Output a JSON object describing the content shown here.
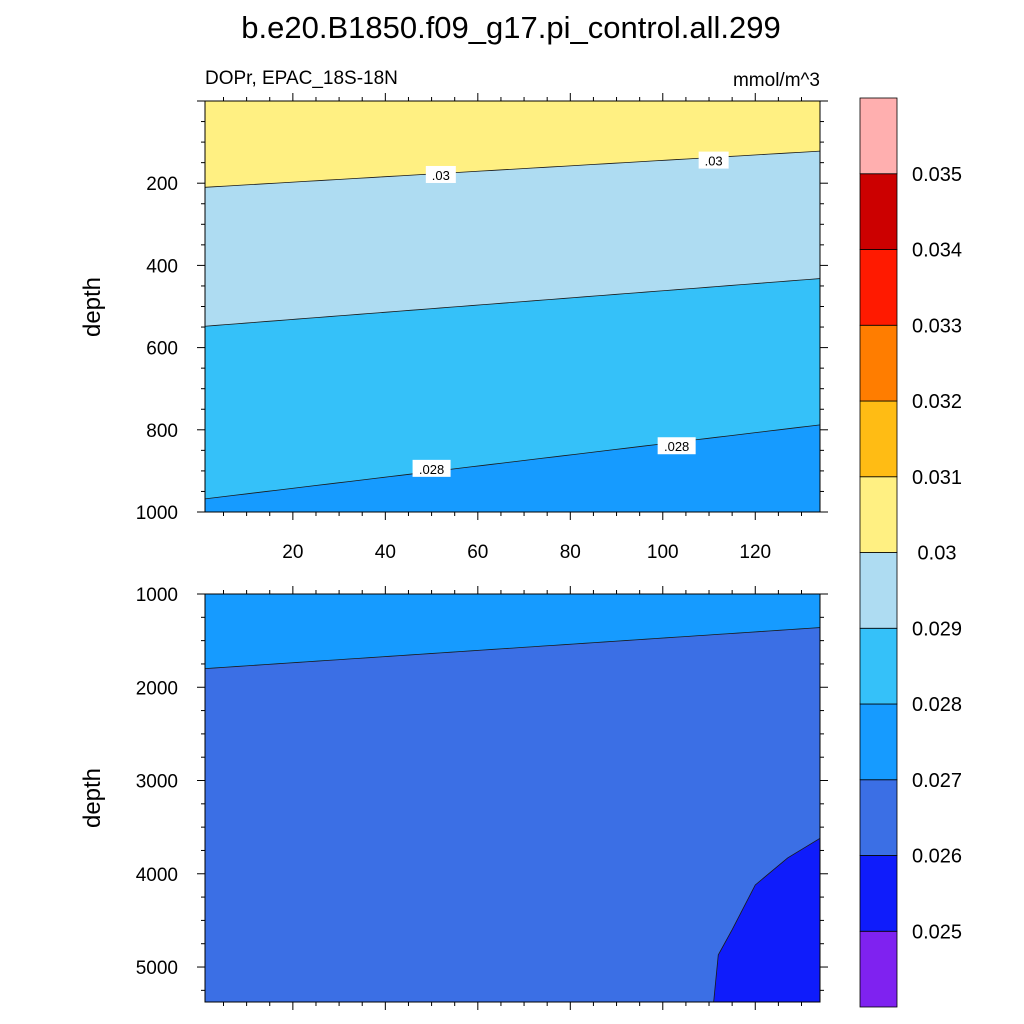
{
  "chart_data": [
    {
      "type": "contour",
      "panel": "upper",
      "title": "b.e20.B1850.f09_g17.pi_control.all.299",
      "left_subtitle": "DOPr, EPAC_18S-18N",
      "right_subtitle": "mmol/m^3",
      "xlabel": "",
      "ylabel": "depth",
      "xlim": [
        1,
        134
      ],
      "ylim": [
        1000,
        0
      ],
      "xticks": [
        "20",
        "40",
        "60",
        "80",
        "100",
        "120"
      ],
      "yticks": [
        "200",
        "400",
        "600",
        "800",
        "1000"
      ],
      "regions": [
        {
          "range": "0.030-0.031",
          "color": "#fff082"
        },
        {
          "range": "0.029-0.030",
          "color": "#aedcf2"
        },
        {
          "range": "0.028-0.029",
          "color": "#35c1f9"
        },
        {
          "range": "0.027-0.028",
          "color": "#169bff"
        }
      ],
      "contours": [
        {
          "level": 0.03,
          "depth_left": 210,
          "depth_right": 122,
          "label": ".03"
        },
        {
          "level": 0.029,
          "depth_left": 548,
          "depth_right": 432,
          "label": ""
        },
        {
          "level": 0.028,
          "depth_left": 968,
          "depth_right": 788,
          "label": ".028"
        }
      ],
      "contour_labels": [
        {
          "text": ".03",
          "x": 52,
          "depth": 180
        },
        {
          "text": ".03",
          "x": 111,
          "depth": 145
        },
        {
          "text": ".028",
          "x": 50,
          "depth": 895
        },
        {
          "text": ".028",
          "x": 103,
          "depth": 840
        }
      ]
    },
    {
      "type": "contour",
      "panel": "lower",
      "xlabel": "",
      "ylabel": "depth",
      "xlim": [
        1,
        134
      ],
      "ylim": [
        5375,
        1000
      ],
      "yticks": [
        "1000",
        "2000",
        "3000",
        "4000",
        "5000"
      ],
      "regions": [
        {
          "range": "0.027-0.028",
          "color": "#169bff"
        },
        {
          "range": "0.026-0.027",
          "color": "#3b6fe5"
        },
        {
          "range": "0.025-0.026",
          "color": "#0f1cfb"
        }
      ],
      "contours": [
        {
          "level": 0.027,
          "depth_left": 1800,
          "depth_right": 1360
        }
      ],
      "low_pocket": {
        "level": 0.026,
        "points": [
          [
            111,
            5375
          ],
          [
            112,
            4870
          ],
          [
            115,
            4600
          ],
          [
            120,
            4120
          ],
          [
            127,
            3830
          ],
          [
            134,
            3620
          ]
        ]
      }
    }
  ],
  "colorbar": {
    "levels": [
      "0.025",
      "0.026",
      "0.027",
      "0.028",
      "0.029",
      "0.03",
      "0.031",
      "0.032",
      "0.033",
      "0.034",
      "0.035"
    ],
    "colors": [
      "#7f22f0",
      "#0f1cfb",
      "#3b6fe5",
      "#169bff",
      "#35c1f9",
      "#aedcf2",
      "#fff082",
      "#ffbc14",
      "#ff7d00",
      "#ff1a00",
      "#cc0000",
      "#ffafaf"
    ]
  }
}
